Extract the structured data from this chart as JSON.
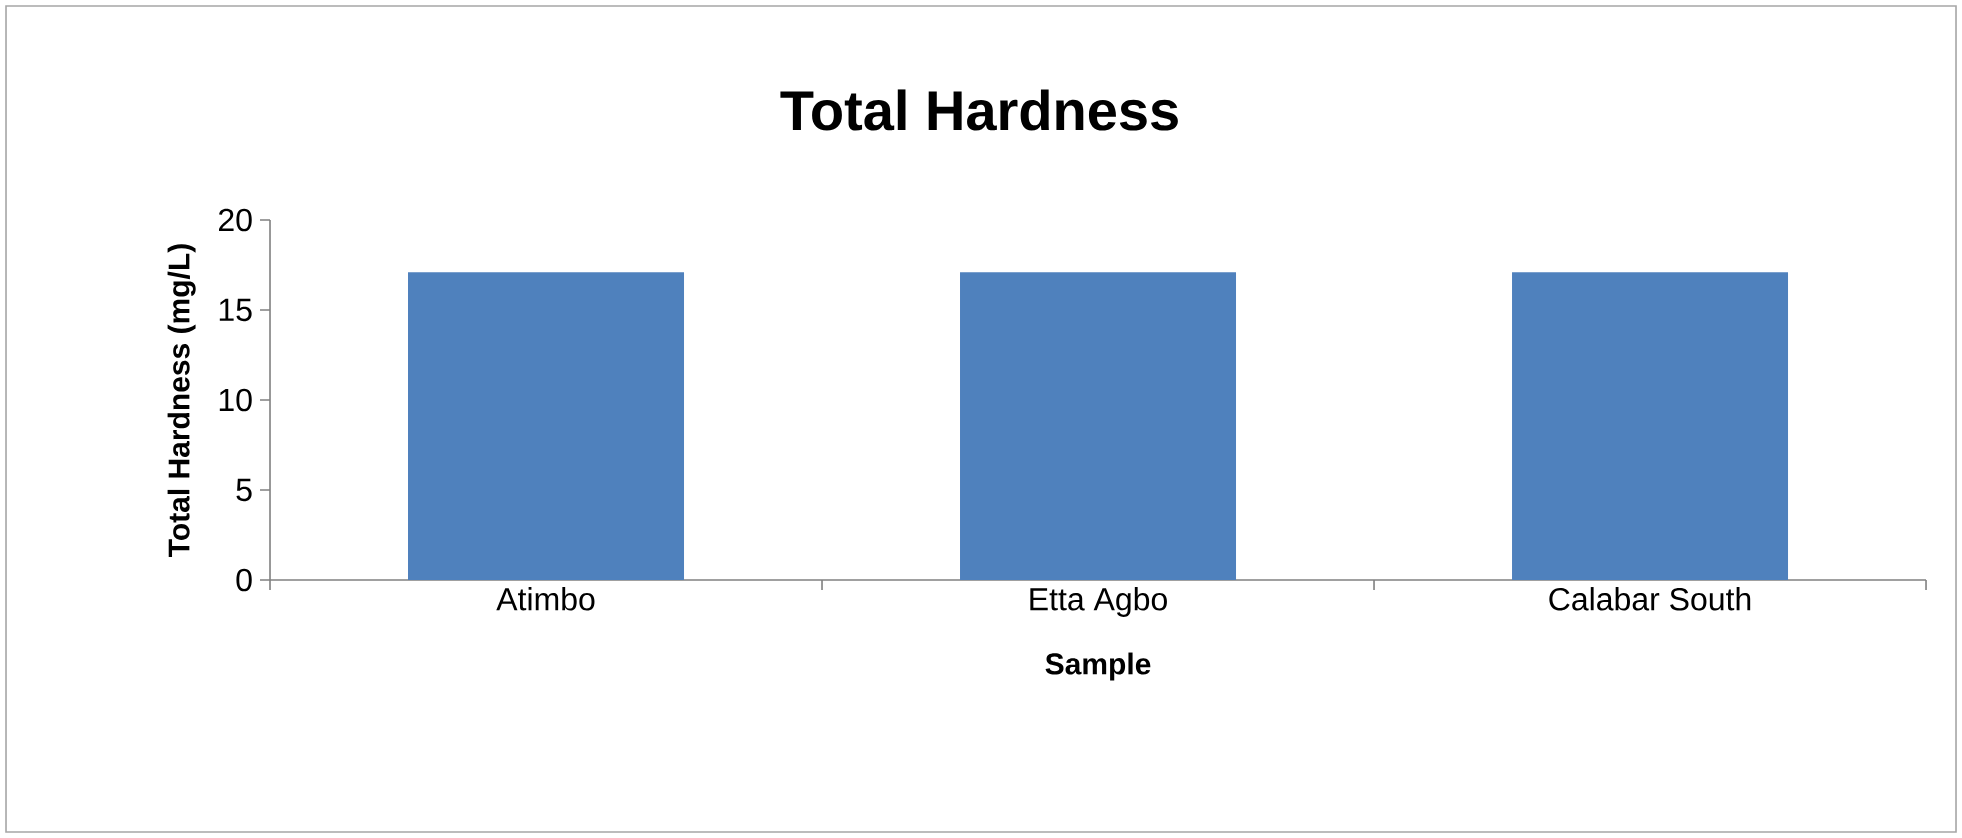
{
  "chart_data": {
    "type": "bar",
    "title": "Total Hardness",
    "xlabel": "Sample",
    "ylabel": "Total Hardness (mg/L)",
    "categories": [
      "Atimbo",
      "Etta Agbo",
      "Calabar South"
    ],
    "values": [
      17.1,
      17.1,
      17.1
    ],
    "color": "#4f81bd",
    "ylim": [
      0,
      20
    ],
    "yticks": [
      0,
      5,
      10,
      15,
      20
    ],
    "grid": false
  }
}
